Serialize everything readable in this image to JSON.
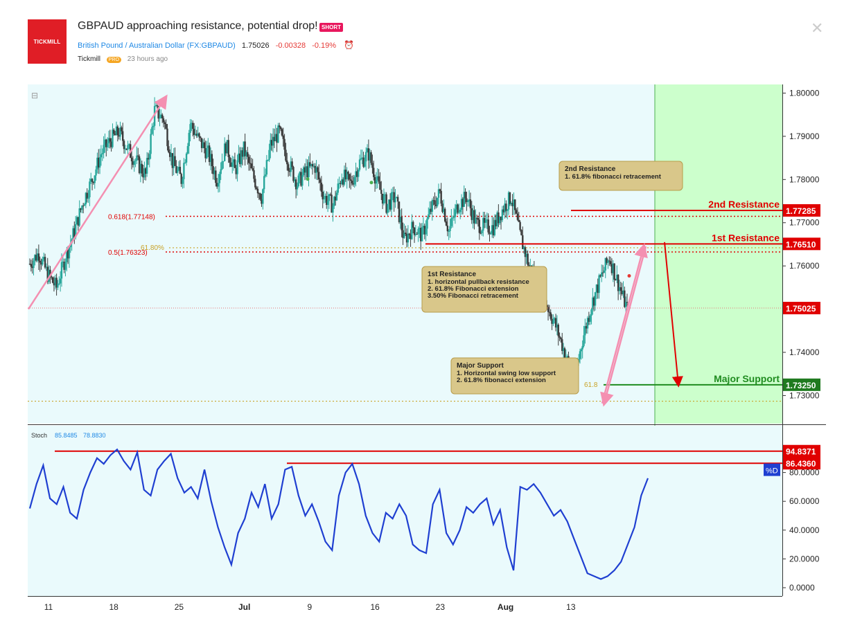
{
  "header": {
    "logo_text": "TICKMILL",
    "title": "GBPAUD approaching resistance, potential drop!",
    "badge": "SHORT",
    "symbol_name": "British Pound / Australian Dollar",
    "symbol_code": "(FX:GBPAUD)",
    "last_price": "1.75026",
    "change": "-0.00328",
    "change_pct": "-0.19%",
    "author": "Tickmill",
    "author_badge": "PRO",
    "time_ago": "23 hours ago"
  },
  "colors": {
    "up": "#26a69a",
    "down": "#3a3a3a",
    "resistance": "#e00000",
    "support": "#1f8c1f",
    "stoch": "#1f3fd1",
    "chart_bg": "#eafafc",
    "forecast_bg": "#ccffcc",
    "annotation_bg": "#d9c78a"
  },
  "chart_data": [
    {
      "type": "candlestick",
      "symbol": "GBPAUD",
      "price_axis": {
        "ylim": [
          1.7235,
          1.802
        ],
        "ticks": [
          "1.80000",
          "1.79000",
          "1.78000",
          "1.77000",
          "1.76000",
          "1.74000",
          "1.73000"
        ]
      },
      "time_axis": {
        "ticks": [
          "11",
          "18",
          "25",
          "Jul",
          "9",
          "16",
          "23",
          "Aug",
          "13"
        ],
        "tick_index": [
          2,
          9,
          16,
          23,
          30,
          37,
          44,
          51,
          58
        ]
      },
      "close_path": [
        1.7605,
        1.763,
        1.758,
        1.755,
        1.762,
        1.768,
        1.775,
        1.78,
        1.786,
        1.789,
        1.791,
        1.787,
        1.784,
        1.781,
        1.796,
        1.794,
        1.784,
        1.78,
        1.793,
        1.789,
        1.786,
        1.78,
        1.788,
        1.782,
        1.787,
        1.781,
        1.776,
        1.788,
        1.791,
        1.784,
        1.779,
        1.782,
        1.783,
        1.776,
        1.774,
        1.781,
        1.779,
        1.784,
        1.786,
        1.779,
        1.774,
        1.776,
        1.766,
        1.769,
        1.767,
        1.773,
        1.777,
        1.768,
        1.774,
        1.776,
        1.77,
        1.769,
        1.769,
        1.773,
        1.776,
        1.767,
        1.76,
        1.756,
        1.751,
        1.746,
        1.74,
        1.733,
        1.743,
        1.751,
        1.757,
        1.762,
        1.756,
        1.75
      ],
      "horizontal_levels": [
        {
          "label": "2nd Resistance",
          "value": 1.77285,
          "price_tag": "1.77285"
        },
        {
          "label": "1st Resistance",
          "value": 1.7651,
          "price_tag": "1.76510"
        },
        {
          "label": "Major Support",
          "value": 1.7325,
          "price_tag": "1.73250"
        },
        {
          "label": "last",
          "value": 1.75025,
          "price_tag": "1.75025"
        }
      ],
      "fib_levels": [
        {
          "label": "0.618(1.77148)",
          "value": 1.77148
        },
        {
          "label": "0.5(1.76323)",
          "value": 1.76323
        },
        {
          "label": "61.80%",
          "value": 1.7642
        },
        {
          "label": "61.8",
          "value": 1.7325
        }
      ],
      "annotations": [
        {
          "name": "2nd-resistance-note",
          "title": "2nd Resistance",
          "lines": [
            "1. 61.8% fibonacci retracement"
          ]
        },
        {
          "name": "1st-resistance-note",
          "title": "1st Resistance",
          "lines": [
            "1. horizontal pullback resistance",
            "2. 61.8% Fibonacci extension",
            "3.50% Fibonacci retracement"
          ]
        },
        {
          "name": "major-support-note",
          "title": "Major Support",
          "lines": [
            "1. Horizontal swing low support",
            "2. 61.8% fibonacci extension"
          ]
        }
      ]
    },
    {
      "type": "line",
      "name": "Stoch",
      "legend_values": [
        "85.8485",
        "78.8830"
      ],
      "ylim": [
        0,
        100
      ],
      "ticks": [
        "80.0000",
        "60.0000",
        "40.0000",
        "20.0000",
        "0.0000"
      ],
      "levels": [
        {
          "value": 94.8371,
          "price_tag": "94.8371"
        },
        {
          "value": 86.436,
          "price_tag": "86.4360"
        }
      ],
      "d_label": "%D",
      "values": [
        55,
        72,
        85,
        62,
        58,
        70,
        52,
        48,
        68,
        80,
        90,
        86,
        92,
        96,
        88,
        82,
        94,
        68,
        64,
        82,
        88,
        93,
        76,
        66,
        70,
        62,
        82,
        60,
        42,
        28,
        16,
        38,
        48,
        66,
        56,
        72,
        48,
        58,
        82,
        84,
        64,
        50,
        58,
        46,
        32,
        26,
        64,
        80,
        86,
        72,
        50,
        38,
        32,
        52,
        48,
        58,
        50,
        30,
        26,
        24,
        58,
        68,
        38,
        30,
        40,
        56,
        52,
        58,
        62,
        44,
        54,
        28,
        12,
        70,
        68,
        72,
        66,
        58,
        50,
        54,
        46,
        34,
        22,
        10,
        8,
        6,
        8,
        12,
        18,
        30,
        42,
        64,
        76
      ]
    }
  ]
}
